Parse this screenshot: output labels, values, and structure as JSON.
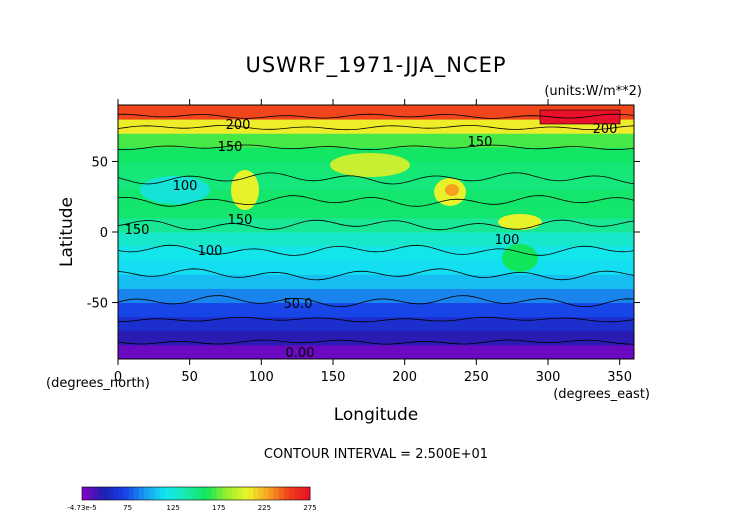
{
  "chart_data": {
    "type": "heatmap",
    "title": "USWRF_1971-JJA_NCEP",
    "units_label": "(units:W/m**2)",
    "xlabel": "Longitude",
    "ylabel": "Latitude",
    "x_unit_label": "(degrees_east)",
    "y_unit_label": "(degrees_north)",
    "xlim": [
      0,
      360
    ],
    "ylim": [
      -90,
      90
    ],
    "x_ticks": [
      0,
      50,
      100,
      150,
      200,
      250,
      300,
      350
    ],
    "y_ticks": [
      -50,
      0,
      50
    ],
    "contour_interval_text": "CONTOUR INTERVAL = 2.500E+01",
    "contour_labels": [
      "200",
      "200",
      "150",
      "150",
      "150",
      "150",
      "100",
      "100",
      "100",
      "50.0",
      "0.00"
    ],
    "zonal_profile": {
      "lat": [
        -90,
        -80,
        -70,
        -60,
        -50,
        -40,
        -30,
        -20,
        -10,
        0,
        10,
        20,
        30,
        40,
        50,
        60,
        70,
        80,
        90
      ],
      "value": [
        0,
        15,
        30,
        45,
        60,
        80,
        95,
        100,
        105,
        125,
        140,
        150,
        140,
        140,
        145,
        150,
        170,
        235,
        260
      ]
    },
    "colorbar": {
      "range": [
        -4.73e-05,
        275
      ],
      "tick_labels": [
        "-4.73e-5",
        "75",
        "125",
        "175",
        "225",
        "275"
      ]
    }
  }
}
